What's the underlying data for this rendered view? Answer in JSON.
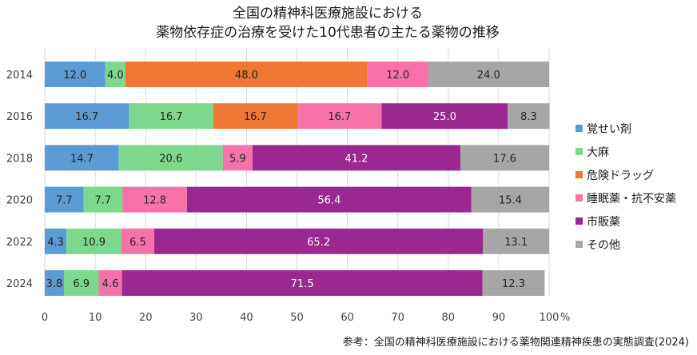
{
  "chart_data": {
    "type": "bar",
    "orientation": "horizontal",
    "stacked": true,
    "title_line1": "全国の精神科医療施設における",
    "title_line2": "薬物依存症の治療を受けた10代患者の主たる薬物の推移",
    "categories": [
      "2014",
      "2016",
      "2018",
      "2020",
      "2022",
      "2024"
    ],
    "series": [
      {
        "name": "覚せい剤",
        "color": "#5B9BD5",
        "values": [
          12.0,
          16.7,
          14.7,
          7.7,
          4.3,
          3.8
        ]
      },
      {
        "name": "大麻",
        "color": "#7CD88D",
        "values": [
          4.0,
          16.7,
          20.6,
          7.7,
          10.9,
          6.9
        ]
      },
      {
        "name": "危険ドラッグ",
        "color": "#ED7733",
        "values": [
          48.0,
          16.7,
          0,
          0,
          0,
          0
        ]
      },
      {
        "name": "睡眠薬・抗不安薬",
        "color": "#F772A9",
        "values": [
          12.0,
          16.7,
          5.9,
          12.8,
          6.5,
          4.6
        ]
      },
      {
        "name": "市販薬",
        "color": "#9B2791",
        "values": [
          0,
          25.0,
          41.2,
          56.4,
          65.2,
          71.5
        ]
      },
      {
        "name": "その他",
        "color": "#A6A6A6",
        "values": [
          24.0,
          8.3,
          17.6,
          15.4,
          13.1,
          12.3
        ]
      }
    ],
    "xlim": [
      0,
      100
    ],
    "xticks": [
      0,
      10,
      20,
      30,
      40,
      50,
      60,
      70,
      80,
      90,
      100
    ],
    "xunit": "%",
    "legend_position": "right",
    "grid": true
  },
  "source": "参考：全国の精神科医療施設における薬物関連精神疾患の実態調査(2024)"
}
